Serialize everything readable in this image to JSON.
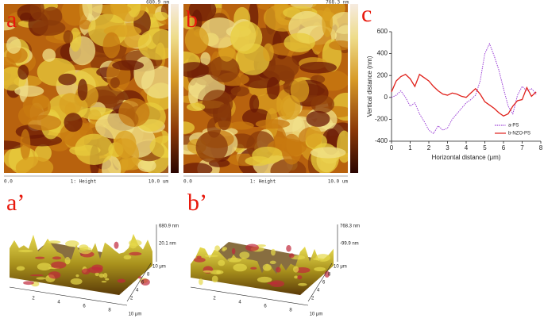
{
  "panels": [
    {
      "label": "a",
      "scale_max": "680.9 nm",
      "scale_min": "0.0",
      "channel": "1: Height",
      "size": "10.0 um"
    },
    {
      "label": "b",
      "scale_max": "768.3 nm",
      "scale_min": "0.0",
      "channel": "1: Height",
      "size": "10.0 um"
    }
  ],
  "chart_panel_label": "c",
  "chart_data": {
    "type": "line",
    "xlabel": "Horizontal distance (μm)",
    "ylabel": "Vertical distance (nm)",
    "x": [
      0,
      0.25,
      0.5,
      0.75,
      1,
      1.25,
      1.5,
      1.75,
      2,
      2.25,
      2.5,
      2.75,
      3,
      3.25,
      3.5,
      3.75,
      4,
      4.25,
      4.5,
      4.75,
      5,
      5.25,
      5.5,
      5.75,
      6,
      6.25,
      6.5,
      6.75,
      7,
      7.25,
      7.5,
      7.75
    ],
    "series": [
      {
        "name": "a-PS",
        "color": "#9b3fd6",
        "dash": true,
        "values": [
          0,
          20,
          60,
          0,
          -80,
          -50,
          -150,
          -220,
          -300,
          -330,
          -260,
          -300,
          -280,
          -200,
          -150,
          -100,
          -50,
          -20,
          20,
          150,
          400,
          490,
          380,
          250,
          80,
          -80,
          -150,
          20,
          100,
          60,
          80,
          30
        ]
      },
      {
        "name": "b-NZO-PS",
        "color": "#e0201a",
        "dash": false,
        "values": [
          50,
          150,
          190,
          210,
          170,
          100,
          210,
          180,
          150,
          100,
          60,
          30,
          20,
          40,
          30,
          10,
          0,
          40,
          80,
          30,
          -40,
          -70,
          -100,
          -140,
          -170,
          -150,
          -80,
          -30,
          -20,
          90,
          10,
          50
        ]
      }
    ],
    "xlim": [
      0,
      8
    ],
    "xticks": [
      0,
      1,
      2,
      3,
      4,
      5,
      6,
      7,
      8
    ],
    "ylim": [
      -400,
      600
    ],
    "yticks": [
      -400,
      -200,
      0,
      200,
      400,
      600
    ],
    "legend": "lower right"
  },
  "surface_panels": [
    {
      "label": "a’",
      "z_labels": [
        "680.9 nm",
        "20.1 nm"
      ],
      "side_ticks": [
        "10 μm",
        "8",
        "6",
        "4",
        "2"
      ],
      "front_ticks": [
        "2",
        "4",
        "6",
        "8",
        "10 μm"
      ]
    },
    {
      "label": "b’",
      "z_labels": [
        "768.3 nm",
        "-99.9 nm"
      ],
      "side_ticks": [
        "10 μm",
        "8",
        "6",
        "4",
        "2"
      ],
      "front_ticks": [
        "2",
        "4",
        "6",
        "8",
        "10 μm"
      ]
    }
  ]
}
